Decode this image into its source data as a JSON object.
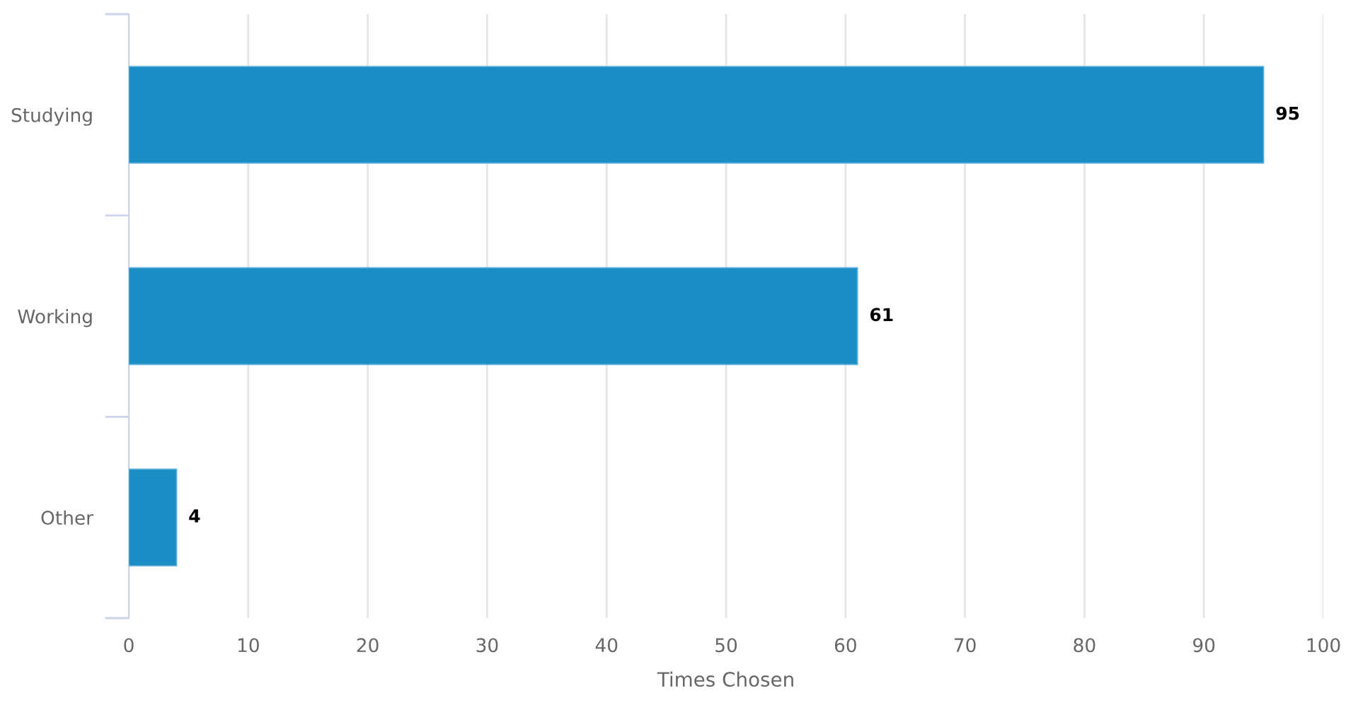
{
  "chart_data": {
    "type": "bar",
    "orientation": "horizontal",
    "categories": [
      "Studying",
      "Working",
      "Other"
    ],
    "values": [
      95,
      61,
      4
    ],
    "color": "#1a8ec4",
    "xlabel": "Times Chosen",
    "xlim": [
      0,
      100
    ],
    "xticks": [
      0,
      10,
      20,
      30,
      40,
      50,
      60,
      70,
      80,
      90,
      100
    ],
    "grid": "x",
    "data_labels": true
  }
}
